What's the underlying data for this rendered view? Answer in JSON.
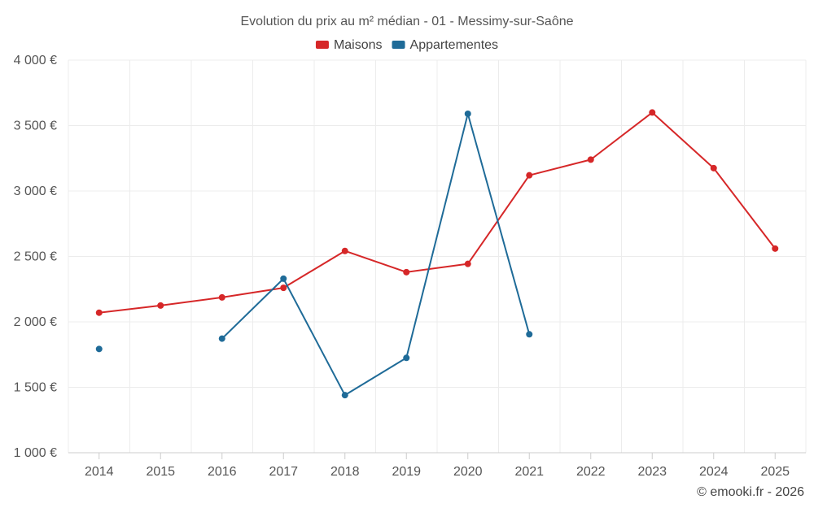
{
  "chart_data": {
    "type": "line",
    "title": "Evolution du prix au m² médian - 01 - Messimy-sur-Saône",
    "xlabel": "",
    "ylabel": "",
    "categories": [
      "2014",
      "2015",
      "2016",
      "2017",
      "2018",
      "2019",
      "2020",
      "2021",
      "2022",
      "2023",
      "2024",
      "2025"
    ],
    "ylim": [
      1000,
      4000
    ],
    "yticks": [
      1000,
      1500,
      2000,
      2500,
      3000,
      3500,
      4000
    ],
    "ytick_labels": [
      "1 000 €",
      "1 500 €",
      "2 000 €",
      "2 500 €",
      "3 000 €",
      "3 500 €",
      "4 000 €"
    ],
    "grid": true,
    "legend_position": "top-center",
    "series": [
      {
        "name": "Maisons",
        "color": "#d62728",
        "values": [
          2070,
          2125,
          2187,
          2260,
          2542,
          2380,
          2443,
          3120,
          3240,
          3600,
          3175,
          2560
        ]
      },
      {
        "name": "Appartementes",
        "color": "#1f6b98",
        "values": [
          1793,
          null,
          1872,
          2330,
          1440,
          1725,
          3590,
          1905,
          null,
          null,
          null,
          null
        ]
      }
    ]
  },
  "credit": "© emooki.fr - 2026"
}
